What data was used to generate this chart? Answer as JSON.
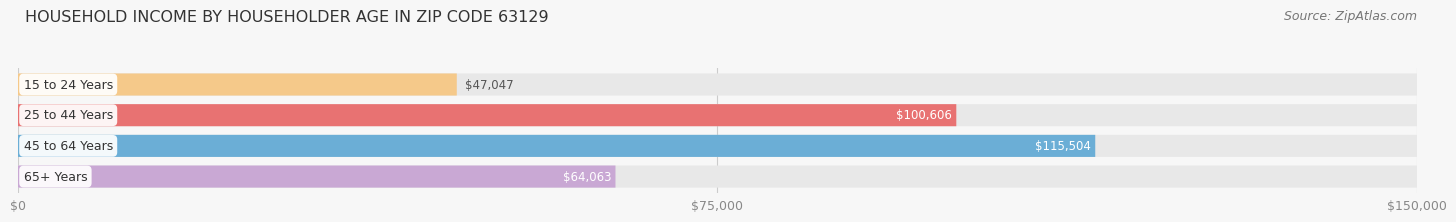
{
  "title": "HOUSEHOLD INCOME BY HOUSEHOLDER AGE IN ZIP CODE 63129",
  "source": "Source: ZipAtlas.com",
  "categories": [
    "15 to 24 Years",
    "25 to 44 Years",
    "45 to 64 Years",
    "65+ Years"
  ],
  "values": [
    47047,
    100606,
    115504,
    64063
  ],
  "bar_colors": [
    "#f5c98a",
    "#e87272",
    "#6baed6",
    "#c9a8d4"
  ],
  "track_color": "#e8e8e8",
  "xlim": [
    0,
    150000
  ],
  "xticks": [
    0,
    75000,
    150000
  ],
  "xtick_labels": [
    "$0",
    "$75,000",
    "$150,000"
  ],
  "background_color": "#f7f7f7",
  "bar_height": 0.72,
  "title_fontsize": 11.5,
  "label_fontsize": 9,
  "value_fontsize": 8.5,
  "source_fontsize": 9,
  "value_label_inside_color": "white",
  "value_label_outside_color": "#555555",
  "inside_threshold": 0.38,
  "cat_label_color": "#333333",
  "tick_color": "#888888",
  "gridline_color": "#cccccc"
}
